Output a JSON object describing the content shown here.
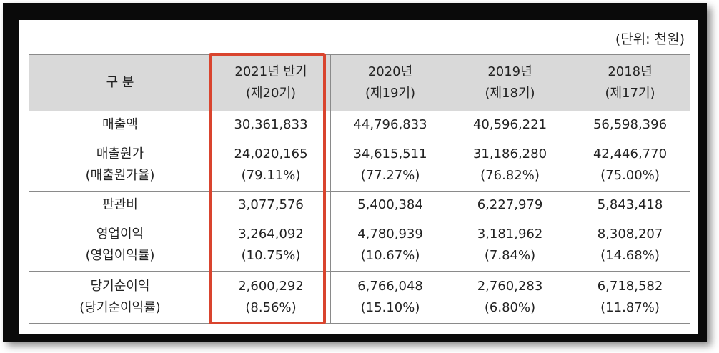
{
  "unit_label": "(단위: 천원)",
  "header": {
    "category": "구 분",
    "columns": [
      {
        "year": "2021년 반기",
        "period": "(제20기)"
      },
      {
        "year": "2020년",
        "period": "(제19기)"
      },
      {
        "year": "2019년",
        "period": "(제18기)"
      },
      {
        "year": "2018년",
        "period": "(제17기)"
      }
    ]
  },
  "rows": [
    {
      "label": "매출액",
      "values": [
        "30,361,833",
        "44,796,833",
        "40,596,221",
        "56,598,396"
      ]
    },
    {
      "label": "매출원가",
      "sub_label": "(매출원가율)",
      "values": [
        "24,020,165",
        "34,615,511",
        "31,186,280",
        "42,446,770"
      ],
      "sub_values": [
        "(79.11%)",
        "(77.27%)",
        "(76.82%)",
        "(75.00%)"
      ]
    },
    {
      "label": "판관비",
      "values": [
        "3,077,576",
        "5,400,384",
        "6,227,979",
        "5,843,418"
      ]
    },
    {
      "label": "영업이익",
      "sub_label": "(영업이익률)",
      "values": [
        "3,264,092",
        "4,780,939",
        "3,181,962",
        "8,308,207"
      ],
      "sub_values": [
        "(10.75%)",
        "(10.67%)",
        "(7.84%)",
        "(14.68%)"
      ]
    },
    {
      "label": "당기순이익",
      "sub_label": "(당기순이익률)",
      "values": [
        "2,600,292",
        "6,766,048",
        "2,760,283",
        "6,718,582"
      ],
      "sub_values": [
        "(8.56%)",
        "(15.10%)",
        "(6.80%)",
        "(11.87%)"
      ]
    }
  ],
  "highlight_color": "#d9442e"
}
